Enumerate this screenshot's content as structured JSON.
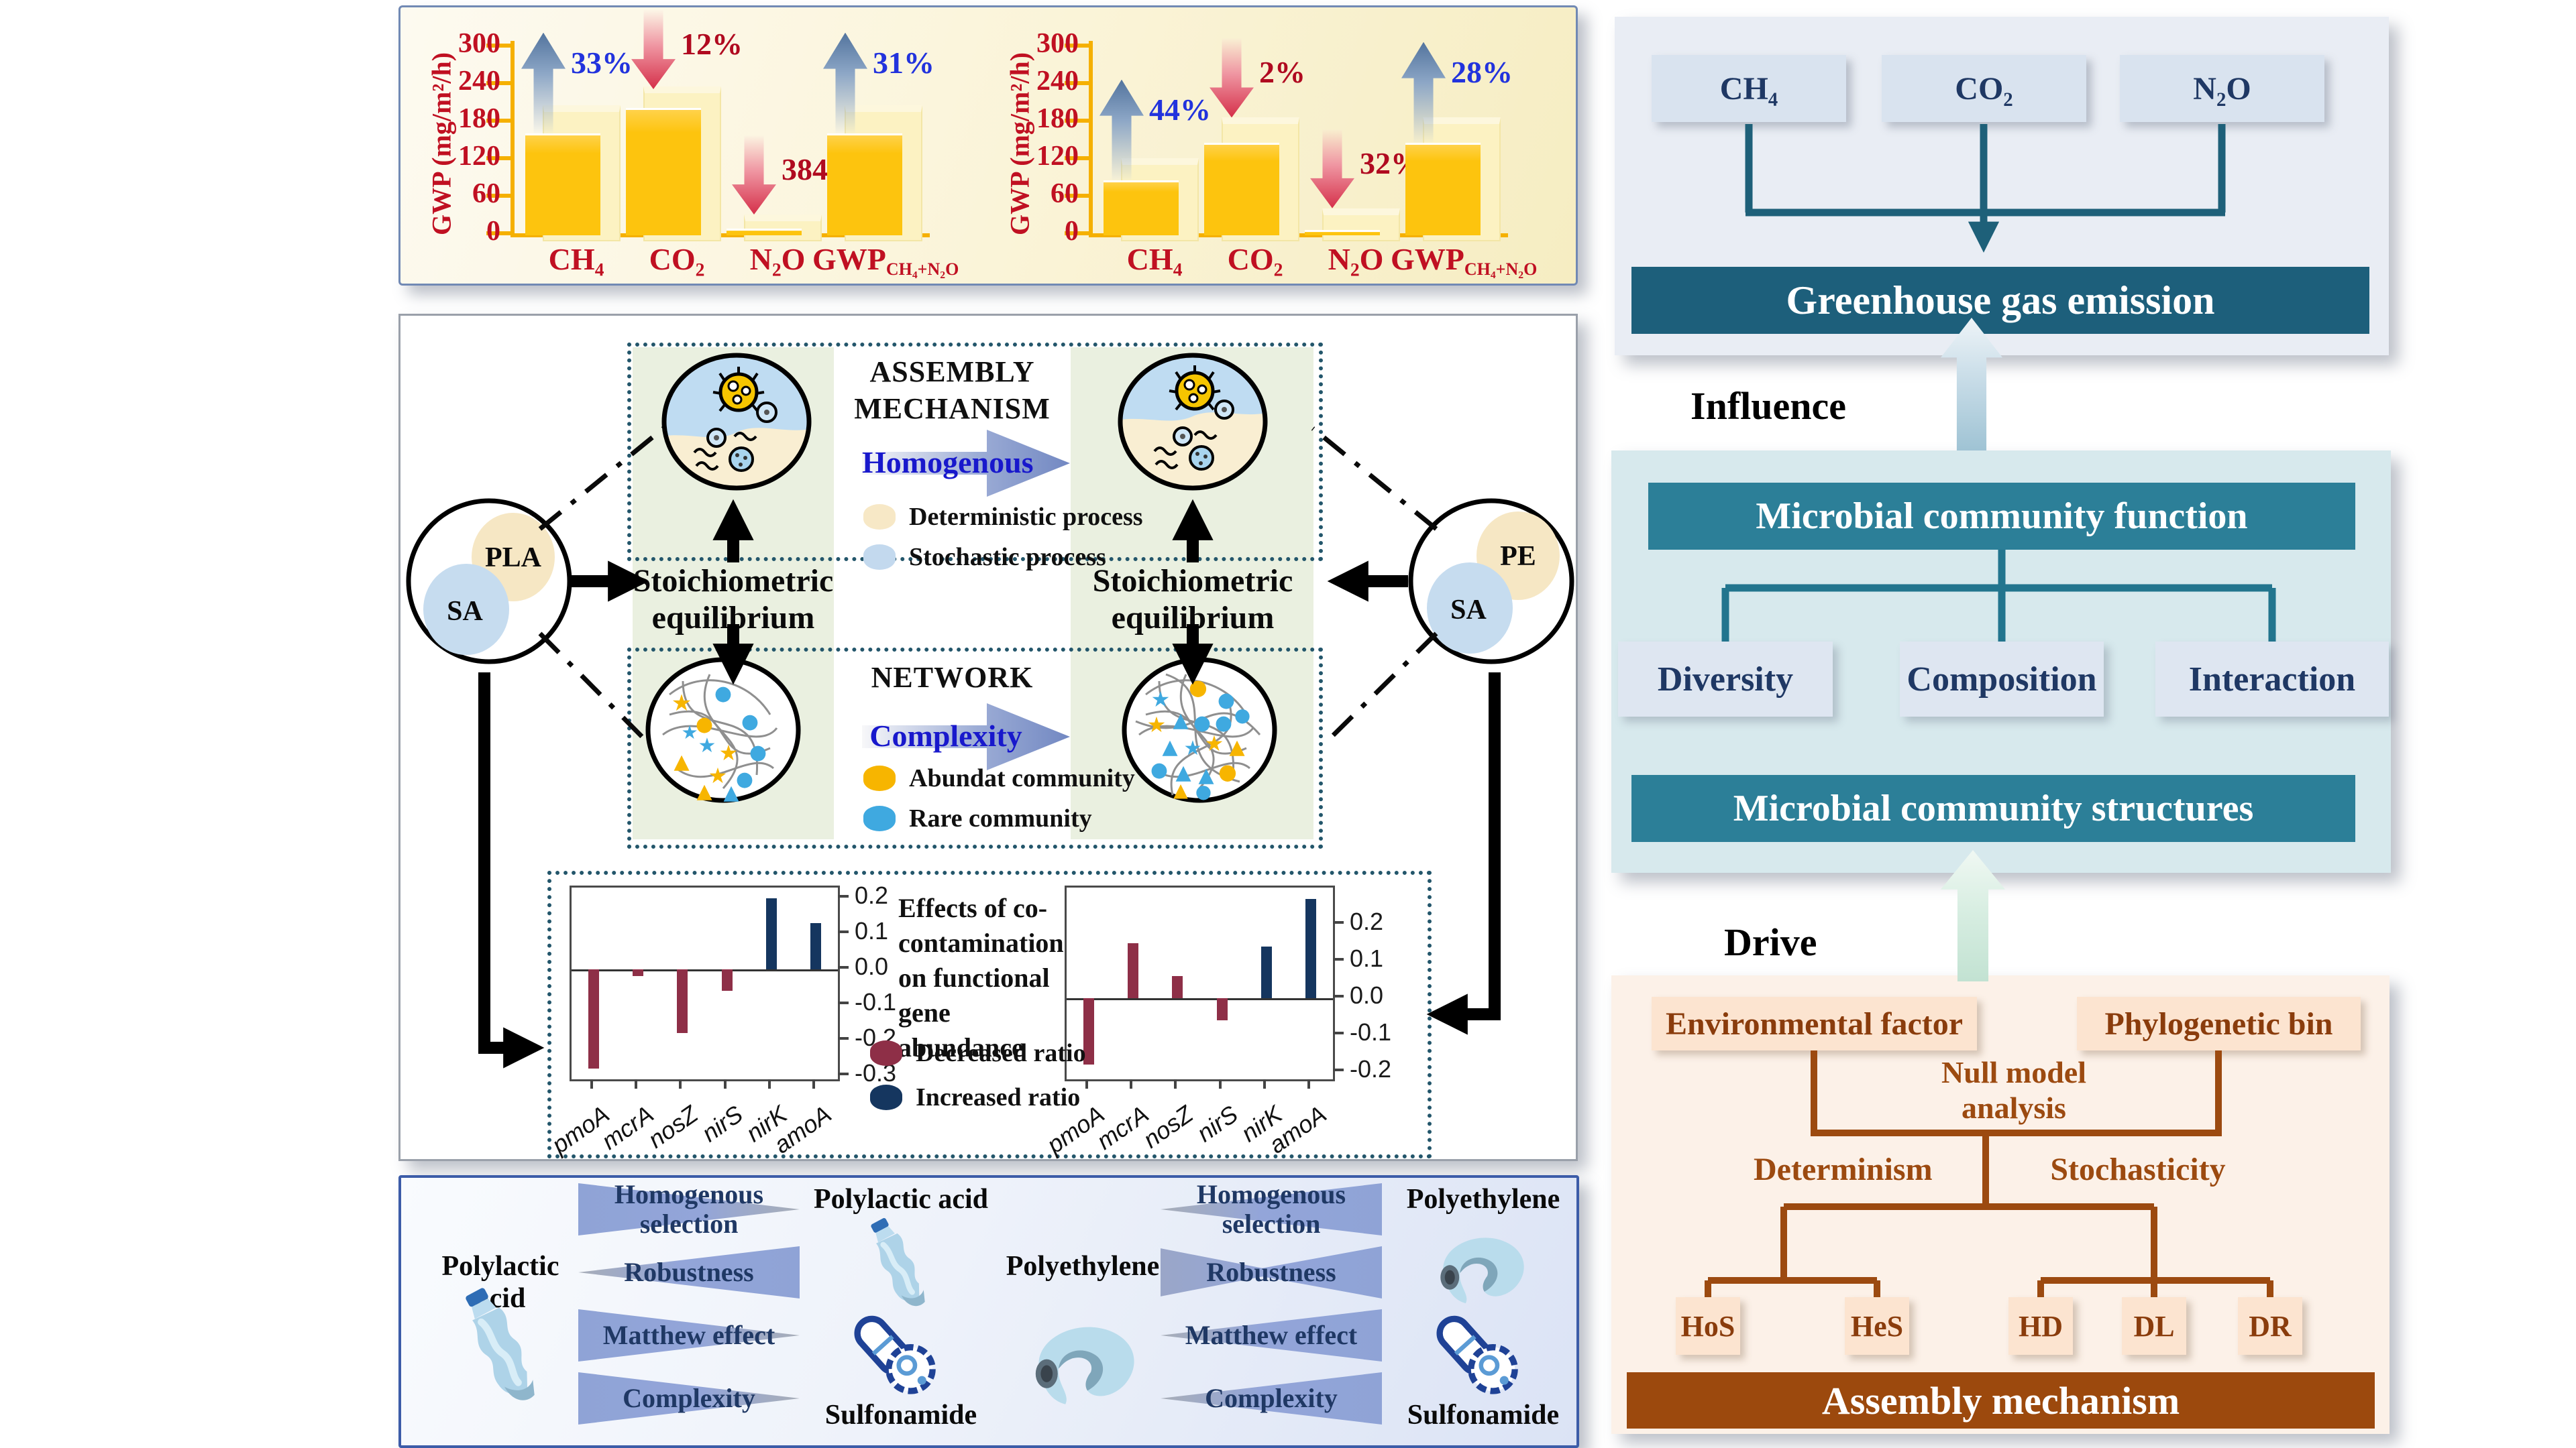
{
  "gwp_panel": {
    "ylabel": "GWP (mg/m²/h)",
    "yticks": [
      300,
      240,
      180,
      120,
      60,
      0
    ],
    "ymax": 300
  },
  "chart_data": [
    {
      "id": "gwp-left",
      "type": "bar",
      "ylabel": "GWP (mg/m²/h)",
      "ylim": [
        0,
        300
      ],
      "yticks": [
        300,
        240,
        180,
        120,
        60,
        0
      ],
      "categories": [
        "CH₄",
        "CO₂",
        "N₂O",
        "GWP|CH₄+N₂O"
      ],
      "values": [
        160,
        200,
        8,
        160
      ],
      "ghost_values": [
        205,
        235,
        30,
        205
      ],
      "annotations": [
        {
          "text": "33%",
          "direction": "up"
        },
        {
          "text": "12%",
          "direction": "down"
        },
        {
          "text": "384%",
          "direction": "down"
        },
        {
          "text": "31%",
          "direction": "up"
        }
      ]
    },
    {
      "id": "gwp-right",
      "type": "bar",
      "ylabel": "GWP (mg/m²/h)",
      "ylim": [
        0,
        300
      ],
      "yticks": [
        300,
        240,
        180,
        120,
        60,
        0
      ],
      "categories": [
        "CH₄",
        "CO₂",
        "N₂O",
        "GWP|CH₄+N₂O"
      ],
      "values": [
        85,
        145,
        5,
        145
      ],
      "ghost_values": [
        120,
        185,
        40,
        185
      ],
      "annotations": [
        {
          "text": "44%",
          "direction": "up"
        },
        {
          "text": "2%",
          "direction": "down"
        },
        {
          "text": "32%",
          "direction": "down"
        },
        {
          "text": "28%",
          "direction": "up"
        }
      ]
    },
    {
      "id": "gene-left",
      "type": "bar",
      "categories": [
        "pmoA",
        "mcrA",
        "nosZ",
        "nirS",
        "nirK",
        "amoA"
      ],
      "values": [
        -0.28,
        -0.02,
        -0.18,
        -0.06,
        0.2,
        0.13
      ],
      "colors": [
        "dec",
        "dec",
        "dec",
        "dec",
        "inc",
        "inc"
      ],
      "yticks": [
        0.2,
        0.1,
        0.0,
        -0.1,
        -0.2,
        -0.3
      ],
      "ymax": 0.23,
      "ymin": -0.31
    },
    {
      "id": "gene-right",
      "type": "bar",
      "categories": [
        "pmoA",
        "mcrA",
        "nosZ",
        "nirS",
        "nirK",
        "amoA"
      ],
      "values": [
        -0.18,
        0.15,
        0.06,
        -0.06,
        0.14,
        0.27
      ],
      "colors": [
        "dec",
        "dec",
        "dec",
        "dec",
        "inc",
        "inc"
      ],
      "yticks": [
        0.2,
        0.1,
        0.0,
        -0.1,
        -0.2
      ],
      "ymax": 0.3,
      "ymin": -0.22
    }
  ],
  "assembly_row": {
    "title": "ASSEMBLY MECHANISM",
    "arrow_label": "Homogenous",
    "legend": [
      {
        "label": "Deterministic process",
        "color": "#f7e8c6"
      },
      {
        "label": "Stochastic process",
        "color": "#c3d9ee"
      }
    ]
  },
  "network_row": {
    "title": "NETWORK",
    "arrow_label": "Complexity",
    "legend": [
      {
        "label": "Abundat community",
        "color": "#f7b500"
      },
      {
        "label": "Rare community",
        "color": "#3fa9e0"
      }
    ]
  },
  "equilibrium_left": "Stoichiometric equilibrium",
  "equilibrium_right": "Stoichiometric equilibrium",
  "venn_left": {
    "top": "PLA",
    "bottom": "SA"
  },
  "venn_right": {
    "top": "PE",
    "bottom": "SA"
  },
  "gene_panel": {
    "note": "Effects of co-contamination on functional gene abundance",
    "legend": [
      {
        "label": "Decreased ratio",
        "color": "#8e2f47"
      },
      {
        "label": "Increased ratio",
        "color": "#15365f"
      }
    ]
  },
  "plastics_panel": {
    "groups": [
      {
        "source": "Polylactic acid",
        "source_icon": "bottle",
        "wedges": [
          {
            "label": "Homogenous selection",
            "trend": "decrease"
          },
          {
            "label": "Robustness",
            "trend": "increase"
          },
          {
            "label": "Matthew effect",
            "trend": "decrease"
          },
          {
            "label": "Complexity",
            "trend": "decrease"
          }
        ],
        "target_top": "Polylactic acid",
        "target_bottom": "Sulfonamide"
      },
      {
        "source": "Polyethylene",
        "source_icon": "film",
        "wedges": [
          {
            "label": "Homogenous selection",
            "trend": "increase"
          },
          {
            "label": "Robustness",
            "trend": "both"
          },
          {
            "label": "Matthew effect",
            "trend": "increase"
          },
          {
            "label": "Complexity",
            "trend": "increase"
          }
        ],
        "target_top": "Polyethylene",
        "target_bottom": "Sulfonamide"
      }
    ]
  },
  "flow_right": {
    "gases": [
      "CH₄",
      "CO₂",
      "N₂O"
    ],
    "emission_bar": "Greenhouse gas emission",
    "influence": "Influence",
    "function_bar": "Microbial community function",
    "aspect_boxes": [
      "Diversity",
      "Composition",
      "Interaction"
    ],
    "structures_bar": "Microbial community structures",
    "drive": "Drive",
    "env_box": "Environmental factor",
    "phylo_box": "Phylogenetic bin",
    "null_model": "Null model analysis",
    "determinism": "Determinism",
    "stochasticity": "Stochasticity",
    "process_boxes": [
      "HoS",
      "HeS",
      "HD",
      "DL",
      "DR"
    ],
    "assembly_bar": "Assembly mechanism"
  },
  "colors": {
    "bar_yellow": "#fdc40e",
    "bar_ghost": "#fcf2c2",
    "axis_orange": "#f5b000",
    "axis_text_red": "#c01022",
    "increase_blue": "#2233dd",
    "decrease_red": "#b00a20",
    "teal_dark": "#1d5f7b",
    "teal_mid": "#2c7f98",
    "brown": "#9c4a10",
    "wedge_blue": "#8fa3d6",
    "decreased_ratio": "#8e2f47",
    "increased_ratio": "#15365f"
  }
}
